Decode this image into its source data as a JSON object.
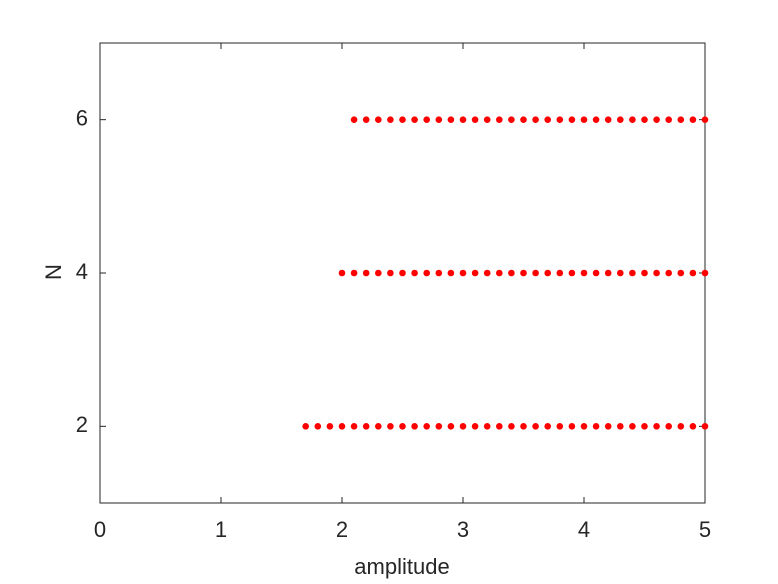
{
  "chart_data": {
    "type": "scatter",
    "xlabel": "amplitude",
    "ylabel": "N",
    "x": [
      1.7,
      1.8,
      1.9,
      2.0,
      2.1,
      2.2,
      2.3,
      2.4,
      2.5,
      2.6,
      2.7,
      2.8,
      2.9,
      3.0,
      3.1,
      3.2,
      3.3,
      3.4,
      3.5,
      3.6,
      3.7,
      3.8,
      3.9,
      4.0,
      4.1,
      4.2,
      4.3,
      4.4,
      4.5,
      4.6,
      4.7,
      4.8,
      4.9,
      5.0,
      2.0,
      2.1,
      2.2,
      2.3,
      2.4,
      2.5,
      2.6,
      2.7,
      2.8,
      2.9,
      3.0,
      3.1,
      3.2,
      3.3,
      3.4,
      3.5,
      3.6,
      3.7,
      3.8,
      3.9,
      4.0,
      4.1,
      4.2,
      4.3,
      4.4,
      4.5,
      4.6,
      4.7,
      4.8,
      4.9,
      5.0,
      2.1,
      2.2,
      2.3,
      2.4,
      2.5,
      2.6,
      2.7,
      2.8,
      2.9,
      3.0,
      3.1,
      3.2,
      3.3,
      3.4,
      3.5,
      3.6,
      3.7,
      3.8,
      3.9,
      4.0,
      4.1,
      4.2,
      4.3,
      4.4,
      4.5,
      4.6,
      4.7,
      4.8,
      4.9,
      5.0
    ],
    "y": [
      2,
      2,
      2,
      2,
      2,
      2,
      2,
      2,
      2,
      2,
      2,
      2,
      2,
      2,
      2,
      2,
      2,
      2,
      2,
      2,
      2,
      2,
      2,
      2,
      2,
      2,
      2,
      2,
      2,
      2,
      2,
      2,
      2,
      2,
      4,
      4,
      4,
      4,
      4,
      4,
      4,
      4,
      4,
      4,
      4,
      4,
      4,
      4,
      4,
      4,
      4,
      4,
      4,
      4,
      4,
      4,
      4,
      4,
      4,
      4,
      4,
      4,
      4,
      4,
      4,
      6,
      6,
      6,
      6,
      6,
      6,
      6,
      6,
      6,
      6,
      6,
      6,
      6,
      6,
      6,
      6,
      6,
      6,
      6,
      6,
      6,
      6,
      6,
      6,
      6,
      6,
      6,
      6,
      6,
      6
    ],
    "color": "#ff0000",
    "xlim": [
      0,
      5
    ],
    "xticks": [
      0,
      1,
      2,
      3,
      4,
      5
    ],
    "ylim": [
      1,
      7
    ],
    "yticks": [
      2,
      4,
      6
    ]
  }
}
